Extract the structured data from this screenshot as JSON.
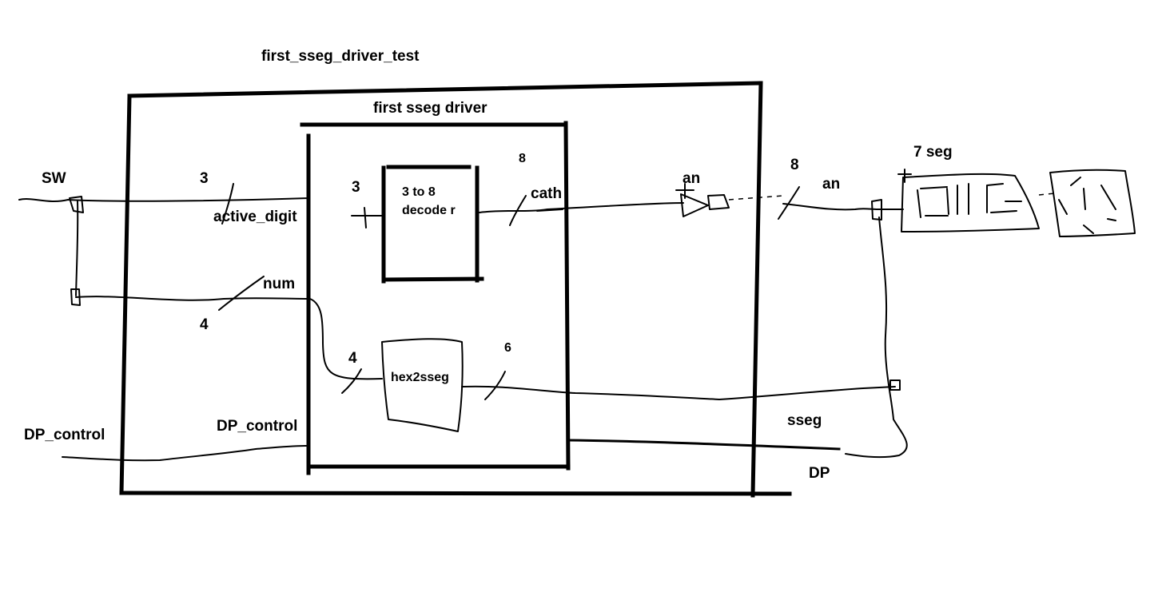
{
  "colors": {
    "ink": "#000000",
    "background": "#ffffff"
  },
  "labels": {
    "outer_title": "first_sseg_driver_test",
    "inner_title": "first sseg driver",
    "sw": "SW",
    "width_3_left": "3",
    "active_digit": "active_digit",
    "num": "num",
    "width_4_left": "4",
    "dp_control_outside": "DP_control",
    "dp_control_inside": "DP_control",
    "width_3_decoder": "3",
    "decoder_label": "3 to 8 decode r",
    "width_8_cath": "8",
    "cath": "cath",
    "width_4_hex": "4",
    "hex2sseg": "hex2sseg",
    "width_6_hex": "6",
    "an_buffer": "an",
    "width_8_an": "8",
    "an_out": "an",
    "seven_seg": "7 seg",
    "sseg": "sseg",
    "dp": "DP"
  },
  "icons": {
    "buffer": "buffer-triangle-icon",
    "seven_seg_display": "seven-segment-display-icon"
  }
}
